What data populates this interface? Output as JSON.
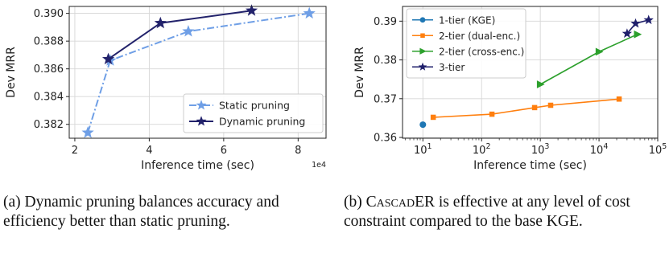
{
  "chart_data": [
    {
      "type": "line",
      "xlabel": "Inference time (sec)",
      "ylabel": "Dev MRR",
      "x_scale": "linear",
      "x_multiplier": "1e4",
      "xlim": [
        1.85,
        8.75
      ],
      "ylim": [
        0.381,
        0.3905
      ],
      "xticks": [
        2,
        4,
        6,
        8
      ],
      "xtick_labels": [
        "2",
        "4",
        "6",
        "8"
      ],
      "yticks": [
        0.382,
        0.384,
        0.386,
        0.388,
        0.39
      ],
      "ytick_labels": [
        "0.382",
        "0.384",
        "0.386",
        "0.388",
        "0.390"
      ],
      "grid": true,
      "legend": "lower-right",
      "series": [
        {
          "name": "Static pruning",
          "color": "#6f9fe6",
          "dash": "dashdot",
          "marker": "star",
          "x": [
            2.35,
            2.95,
            5.05,
            8.3
          ],
          "y": [
            0.3814,
            0.3866,
            0.3887,
            0.39
          ]
        },
        {
          "name": "Dynamic pruning",
          "color": "#22226b",
          "dash": "solid",
          "marker": "star",
          "x": [
            2.9,
            4.3,
            6.75
          ],
          "y": [
            0.3867,
            0.3893,
            0.3902
          ]
        }
      ],
      "caption": "(a) Dynamic pruning balances accuracy and efficiency better than static pruning."
    },
    {
      "type": "line",
      "xlabel": "Inference time (sec)",
      "ylabel": "Dev MRR",
      "x_scale": "log",
      "xlim": [
        4.5,
        100000
      ],
      "ylim": [
        0.3598,
        0.3938
      ],
      "xticks": [
        10,
        100,
        1000,
        10000,
        100000
      ],
      "xtick_labels": [
        "10^1",
        "10^2",
        "10^3",
        "10^4",
        "10^5"
      ],
      "yticks": [
        0.36,
        0.37,
        0.38,
        0.39
      ],
      "ytick_labels": [
        "0.36",
        "0.37",
        "0.38",
        "0.39"
      ],
      "grid": true,
      "legend": "top-left",
      "series": [
        {
          "name": "1-tier (KGE)",
          "color": "#1f77b4",
          "marker": "circle",
          "x": [
            10
          ],
          "y": [
            0.3633
          ]
        },
        {
          "name": "2-tier (dual-enc.)",
          "color": "#ff7f0e",
          "marker": "square",
          "x": [
            15,
            150,
            800,
            1500,
            22000
          ],
          "y": [
            0.3652,
            0.366,
            0.3677,
            0.3683,
            0.3699
          ]
        },
        {
          "name": "2-tier (cross-enc.)",
          "color": "#2ca02c",
          "marker": "triangle-right",
          "x": [
            1000,
            10000,
            45000
          ],
          "y": [
            0.3737,
            0.3821,
            0.3866
          ]
        },
        {
          "name": "3-tier",
          "color": "#1f1f6b",
          "marker": "star",
          "x": [
            30000,
            42000,
            70000
          ],
          "y": [
            0.3868,
            0.3894,
            0.3903
          ]
        }
      ],
      "caption_parts": [
        "(b) ",
        "CascadER",
        " is effective at any level of cost constraint compared to the base KGE."
      ]
    }
  ]
}
